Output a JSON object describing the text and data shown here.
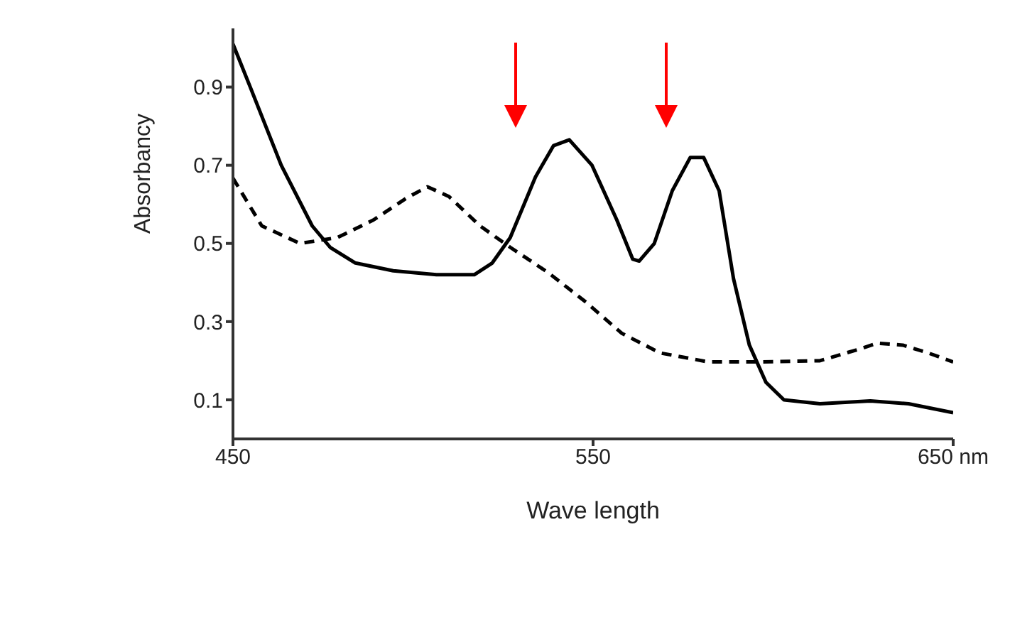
{
  "chart_data": {
    "type": "line",
    "xlabel": "Wave length",
    "ylabel": "Absorbancy",
    "xlim": [
      450,
      650
    ],
    "xticks": [
      450,
      550,
      {
        "value": 650,
        "label": "650 nm"
      }
    ],
    "ylim": [
      0,
      1.05
    ],
    "yticks": [
      0.1,
      0.3,
      0.5,
      0.7,
      0.9
    ],
    "grid": false,
    "legend": false,
    "marker": "none",
    "series": [
      {
        "color": "#000000",
        "line_style": "solid",
        "x": [
          450,
          454.8,
          463.4,
          472,
          477,
          484,
          494.5,
          506.5,
          517,
          522,
          527,
          534,
          539,
          543.4,
          549.7,
          556.6,
          561,
          562.8,
          567,
          572,
          577,
          580.7,
          585,
          589,
          593.4,
          598,
          603,
          613,
          627,
          637.6,
          650
        ],
        "values": [
          1.01,
          0.9,
          0.7,
          0.545,
          0.49,
          0.45,
          0.43,
          0.42,
          0.42,
          0.45,
          0.515,
          0.67,
          0.75,
          0.765,
          0.7,
          0.56,
          0.46,
          0.455,
          0.5,
          0.635,
          0.72,
          0.72,
          0.635,
          0.41,
          0.24,
          0.145,
          0.1,
          0.09,
          0.097,
          0.09,
          0.067
        ]
      },
      {
        "color": "#000000",
        "line_style": "dashed",
        "x": [
          450,
          458,
          468.6,
          479,
          489,
          498,
          504,
          510,
          518.6,
          527,
          537.6,
          548,
          558,
          568.6,
          582,
          596,
          613,
          624,
          629,
          636,
          643,
          650
        ],
        "values": [
          0.667,
          0.545,
          0.5,
          0.515,
          0.56,
          0.615,
          0.645,
          0.62,
          0.545,
          0.49,
          0.425,
          0.35,
          0.27,
          0.22,
          0.197,
          0.197,
          0.2,
          0.23,
          0.245,
          0.24,
          0.22,
          0.197
        ]
      }
    ]
  }
}
